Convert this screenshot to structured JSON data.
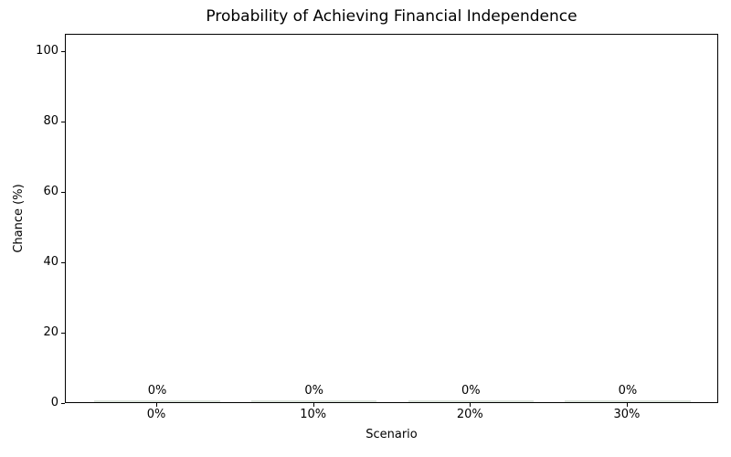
{
  "chart_data": {
    "type": "bar",
    "title": "Probability of Achieving Financial Independence",
    "xlabel": "Scenario",
    "ylabel": "Chance (%)",
    "categories": [
      "0%",
      "10%",
      "20%",
      "30%"
    ],
    "values": [
      0,
      0,
      0,
      0
    ],
    "bar_labels": [
      "0%",
      "0%",
      "0%",
      "0%"
    ],
    "yticks": [
      0,
      20,
      40,
      60,
      80,
      100
    ],
    "ytick_labels": [
      "0",
      "20",
      "40",
      "60",
      "80",
      "100"
    ],
    "ylim": [
      0,
      105
    ],
    "grid": false,
    "legend": null,
    "bar_color": "#dbe4db",
    "axis_color": "#000000",
    "text_color": "#000000",
    "background_color": "#ffffff"
  }
}
